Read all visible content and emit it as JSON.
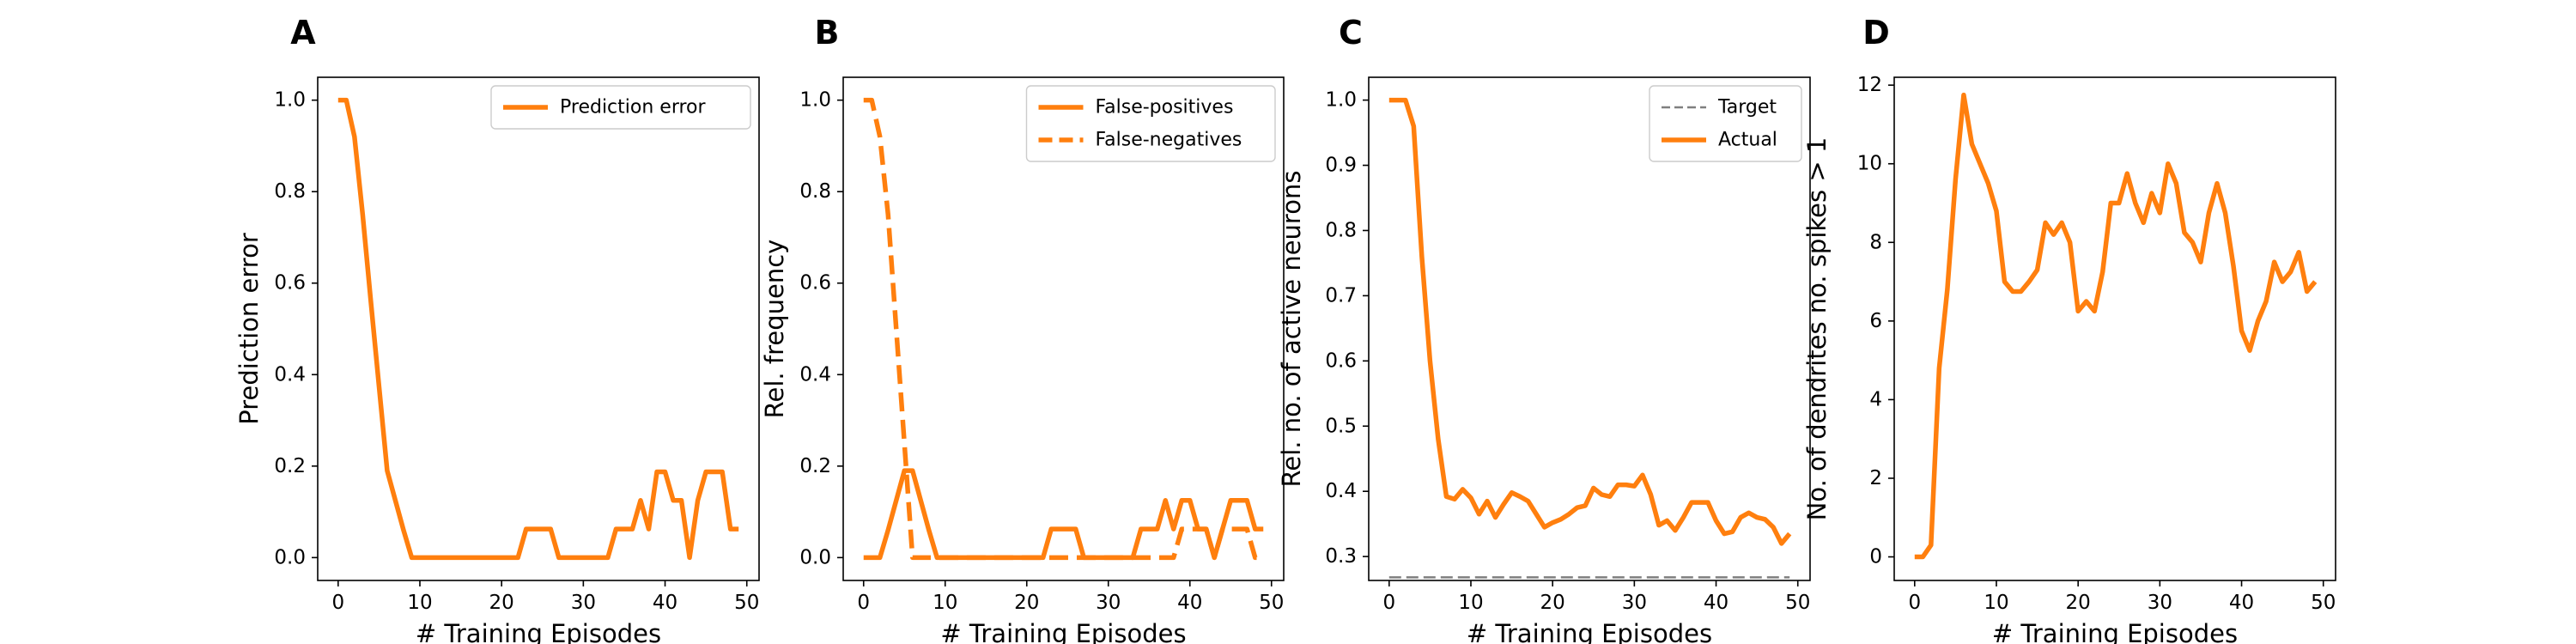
{
  "colors": {
    "series": "#ff7f0e",
    "target": "#7f7f7f",
    "axes": "#000000",
    "background": "#ffffff"
  },
  "chart_data": [
    {
      "type": "line",
      "panel": "A",
      "xlabel": "# Training Episodes",
      "ylabel": "Prediction error",
      "xlim": [
        -2.5,
        51.5
      ],
      "ylim": [
        -0.05,
        1.05
      ],
      "xticks": [
        0,
        10,
        20,
        30,
        40,
        50
      ],
      "yticks": [
        0.0,
        0.2,
        0.4,
        0.6,
        0.8,
        1.0
      ],
      "ytick_labels": [
        "0.0",
        "0.2",
        "0.4",
        "0.6",
        "0.8",
        "1.0"
      ],
      "legend": "top-right",
      "x": [
        0,
        1,
        2,
        3,
        4,
        5,
        6,
        7,
        8,
        9,
        10,
        11,
        12,
        13,
        14,
        15,
        16,
        17,
        18,
        19,
        20,
        21,
        22,
        23,
        24,
        25,
        26,
        27,
        28,
        29,
        30,
        31,
        32,
        33,
        34,
        35,
        36,
        37,
        38,
        39,
        40,
        41,
        42,
        43,
        44,
        45,
        46,
        47,
        48,
        49
      ],
      "series": [
        {
          "name": "Prediction error",
          "style": "solid",
          "values": [
            1.0,
            1.0,
            0.92,
            0.75,
            0.56,
            0.375,
            0.19,
            0.125,
            0.06,
            0.0,
            0.0,
            0.0,
            0.0,
            0.0,
            0.0,
            0.0,
            0.0,
            0.0,
            0.0,
            0.0,
            0.0,
            0.0,
            0.0,
            0.0625,
            0.0625,
            0.0625,
            0.0625,
            0.0,
            0.0,
            0.0,
            0.0,
            0.0,
            0.0,
            0.0,
            0.0625,
            0.0625,
            0.0625,
            0.125,
            0.0625,
            0.1875,
            0.1875,
            0.125,
            0.125,
            0.0,
            0.125,
            0.1875,
            0.1875,
            0.1875,
            0.0625,
            0.0625
          ]
        }
      ]
    },
    {
      "type": "line",
      "panel": "B",
      "xlabel": "# Training Episodes",
      "ylabel": "Rel. frequency",
      "xlim": [
        -2.5,
        51.5
      ],
      "ylim": [
        -0.05,
        1.05
      ],
      "xticks": [
        0,
        10,
        20,
        30,
        40,
        50
      ],
      "yticks": [
        0.0,
        0.2,
        0.4,
        0.6,
        0.8,
        1.0
      ],
      "ytick_labels": [
        "0.0",
        "0.2",
        "0.4",
        "0.6",
        "0.8",
        "1.0"
      ],
      "legend": "top-right",
      "x": [
        0,
        1,
        2,
        3,
        4,
        5,
        6,
        7,
        8,
        9,
        10,
        11,
        12,
        13,
        14,
        15,
        16,
        17,
        18,
        19,
        20,
        21,
        22,
        23,
        24,
        25,
        26,
        27,
        28,
        29,
        30,
        31,
        32,
        33,
        34,
        35,
        36,
        37,
        38,
        39,
        40,
        41,
        42,
        43,
        44,
        45,
        46,
        47,
        48,
        49
      ],
      "series": [
        {
          "name": "False-positives",
          "style": "solid",
          "values": [
            0.0,
            0.0,
            0.0,
            0.06,
            0.125,
            0.19,
            0.19,
            0.125,
            0.06,
            0.0,
            0.0,
            0.0,
            0.0,
            0.0,
            0.0,
            0.0,
            0.0,
            0.0,
            0.0,
            0.0,
            0.0,
            0.0,
            0.0,
            0.0625,
            0.0625,
            0.0625,
            0.0625,
            0.0,
            0.0,
            0.0,
            0.0,
            0.0,
            0.0,
            0.0,
            0.0625,
            0.0625,
            0.0625,
            0.125,
            0.0625,
            0.125,
            0.125,
            0.0625,
            0.0625,
            0.0,
            0.0625,
            0.125,
            0.125,
            0.125,
            0.0625,
            0.0625
          ]
        },
        {
          "name": "False-negatives",
          "style": "dashed",
          "values": [
            1.0,
            1.0,
            0.92,
            0.75,
            0.5,
            0.25,
            0.0,
            0.0,
            0.0,
            0.0,
            0.0,
            0.0,
            0.0,
            0.0,
            0.0,
            0.0,
            0.0,
            0.0,
            0.0,
            0.0,
            0.0,
            0.0,
            0.0,
            0.0,
            0.0,
            0.0,
            0.0,
            0.0,
            0.0,
            0.0,
            0.0,
            0.0,
            0.0,
            0.0,
            0.0,
            0.0,
            0.0,
            0.0,
            0.0,
            0.0625,
            0.0625,
            0.0625,
            0.0625,
            0.0,
            0.0625,
            0.0625,
            0.0625,
            0.0625,
            0.0,
            0.0
          ]
        }
      ]
    },
    {
      "type": "line",
      "panel": "C",
      "xlabel": "# Training Episodes",
      "ylabel": "Rel. no. of active neurons",
      "xlim": [
        -2.5,
        51.5
      ],
      "ylim": [
        0.2633,
        1.035
      ],
      "xticks": [
        0,
        10,
        20,
        30,
        40,
        50
      ],
      "yticks": [
        0.3,
        0.4,
        0.5,
        0.6,
        0.7,
        0.8,
        0.9,
        1.0
      ],
      "ytick_labels": [
        "0.3",
        "0.4",
        "0.5",
        "0.6",
        "0.7",
        "0.8",
        "0.9",
        "1.0"
      ],
      "legend": "top-right",
      "x": [
        0,
        1,
        2,
        3,
        4,
        5,
        6,
        7,
        8,
        9,
        10,
        11,
        12,
        13,
        14,
        15,
        16,
        17,
        18,
        19,
        20,
        21,
        22,
        23,
        24,
        25,
        26,
        27,
        28,
        29,
        30,
        31,
        32,
        33,
        34,
        35,
        36,
        37,
        38,
        39,
        40,
        41,
        42,
        43,
        44,
        45,
        46,
        47,
        48,
        49
      ],
      "series": [
        {
          "name": "Target",
          "style": "dashed-gray",
          "values": [
            0.268,
            0.268,
            0.268,
            0.268,
            0.268,
            0.268,
            0.268,
            0.268,
            0.268,
            0.268,
            0.268,
            0.268,
            0.268,
            0.268,
            0.268,
            0.268,
            0.268,
            0.268,
            0.268,
            0.268,
            0.268,
            0.268,
            0.268,
            0.268,
            0.268,
            0.268,
            0.268,
            0.268,
            0.268,
            0.268,
            0.268,
            0.268,
            0.268,
            0.268,
            0.268,
            0.268,
            0.268,
            0.268,
            0.268,
            0.268,
            0.268,
            0.268,
            0.268,
            0.268,
            0.268,
            0.268,
            0.268,
            0.268,
            0.268,
            0.268
          ]
        },
        {
          "name": "Actual",
          "style": "solid",
          "values": [
            1.0,
            1.0,
            1.0,
            0.96,
            0.76,
            0.6,
            0.48,
            0.392,
            0.388,
            0.403,
            0.39,
            0.365,
            0.385,
            0.36,
            0.38,
            0.398,
            0.392,
            0.385,
            0.365,
            0.345,
            0.352,
            0.357,
            0.365,
            0.375,
            0.378,
            0.405,
            0.395,
            0.392,
            0.41,
            0.41,
            0.408,
            0.425,
            0.395,
            0.348,
            0.355,
            0.34,
            0.36,
            0.383,
            0.383,
            0.383,
            0.355,
            0.335,
            0.338,
            0.36,
            0.367,
            0.36,
            0.357,
            0.345,
            0.32,
            0.335
          ]
        }
      ]
    },
    {
      "type": "line",
      "panel": "D",
      "xlabel": "# Training Episodes",
      "ylabel": "No. of dendrites no. spikes > 1",
      "xlim": [
        -2.5,
        51.5
      ],
      "ylim": [
        -0.6,
        12.2
      ],
      "xticks": [
        0,
        10,
        20,
        30,
        40,
        50
      ],
      "yticks": [
        0,
        2,
        4,
        6,
        8,
        10,
        12
      ],
      "ytick_labels": [
        "0",
        "2",
        "4",
        "6",
        "8",
        "10",
        "12"
      ],
      "x": [
        0,
        1,
        2,
        3,
        4,
        5,
        6,
        7,
        8,
        9,
        10,
        11,
        12,
        13,
        14,
        15,
        16,
        17,
        18,
        19,
        20,
        21,
        22,
        23,
        24,
        25,
        26,
        27,
        28,
        29,
        30,
        31,
        32,
        33,
        34,
        35,
        36,
        37,
        38,
        39,
        40,
        41,
        42,
        43,
        44,
        45,
        46,
        47,
        48,
        49
      ],
      "series": [
        {
          "style": "solid",
          "values": [
            0.0,
            0.0,
            0.3,
            4.8,
            6.8,
            9.6,
            11.75,
            10.5,
            10.0,
            9.5,
            8.8,
            7.0,
            6.75,
            6.75,
            7.0,
            7.3,
            8.5,
            8.2,
            8.5,
            8.0,
            6.25,
            6.5,
            6.25,
            7.25,
            9.0,
            9.0,
            9.75,
            9.0,
            8.5,
            9.25,
            8.75,
            10.0,
            9.5,
            8.25,
            8.0,
            7.5,
            8.75,
            9.5,
            8.75,
            7.4,
            5.75,
            5.25,
            6.0,
            6.5,
            7.5,
            7.0,
            7.25,
            7.75,
            6.75,
            7.0
          ]
        }
      ]
    }
  ]
}
